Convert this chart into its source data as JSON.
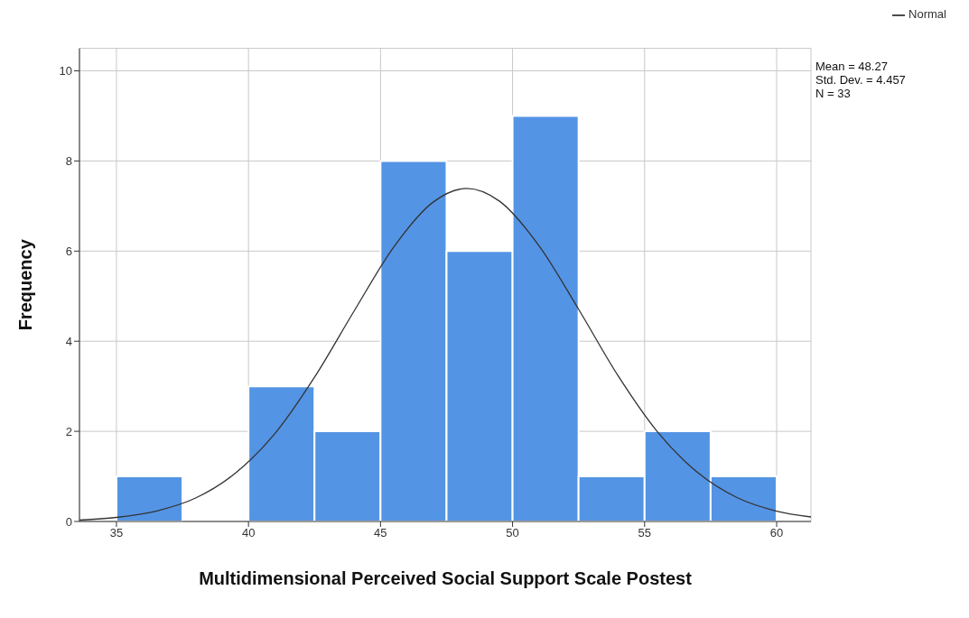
{
  "chart_data": {
    "type": "histogram",
    "xlabel": "Multidimensional Perceived Social Support Scale Postest",
    "ylabel": "Frequency",
    "xlim": [
      33.6,
      61.3
    ],
    "xticks": [
      35,
      40,
      45,
      50,
      55,
      60
    ],
    "ylim": [
      0,
      10.5
    ],
    "yticks": [
      0,
      2,
      4,
      6,
      8,
      10
    ],
    "grid": true,
    "legend": "top right",
    "annotations": [
      "Mean = 48.27",
      "Std. Dev. = 4.457",
      "N = 33"
    ],
    "series": [
      {
        "type": "histogram",
        "color": "#5494e4",
        "bins": [
          35,
          37.5,
          40,
          42.5,
          45,
          47.5,
          50,
          52.5,
          55,
          57.5,
          60
        ],
        "values": [
          1,
          0,
          3,
          2,
          8,
          6,
          9,
          1,
          2,
          1
        ]
      },
      {
        "type": "line",
        "name": "Normal",
        "color": "#333333",
        "marker": "none",
        "x": [
          33.6,
          35,
          36.5,
          38,
          39.5,
          41,
          42.5,
          44,
          45.5,
          47,
          48.27,
          49.5,
          51,
          52.5,
          54,
          55.5,
          57,
          58.5,
          60,
          61.3
        ],
        "values": [
          0.03,
          0.09,
          0.23,
          0.52,
          1.07,
          1.95,
          3.2,
          4.67,
          6.09,
          7.09,
          7.39,
          7.11,
          6.12,
          4.71,
          3.23,
          1.98,
          1.09,
          0.53,
          0.23,
          0.1
        ]
      }
    ]
  }
}
